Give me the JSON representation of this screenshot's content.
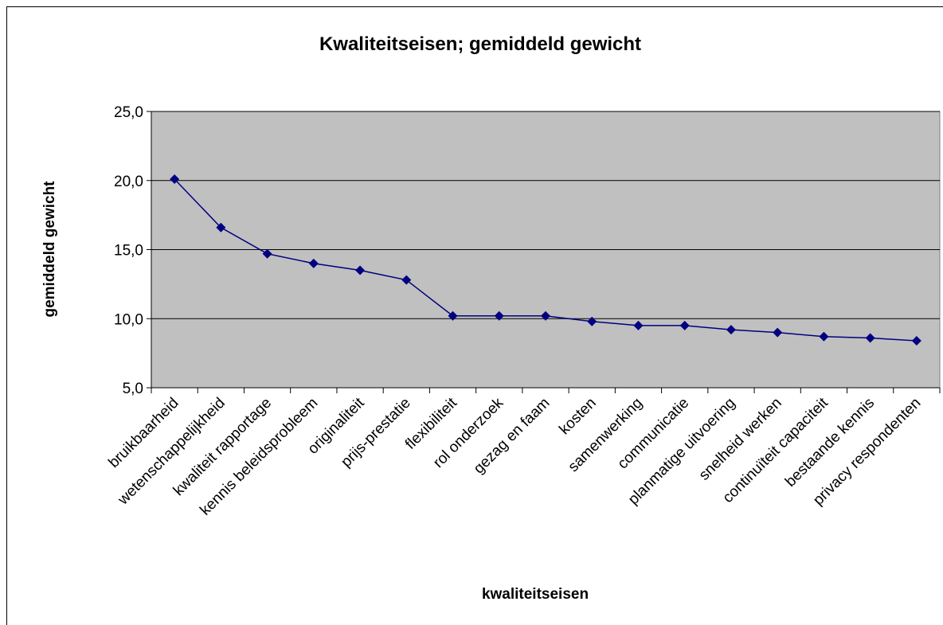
{
  "chart_data": {
    "type": "line",
    "title": "Kwaliteitseisen; gemiddeld gewicht",
    "x_label": "kwaliteitseisen",
    "y_label": "gemiddeld gewicht",
    "categories": [
      "bruikbaarheid",
      "wetenschappelijkheid",
      "kwaliteit rapportage",
      "kennis beleidsprobleem",
      "originaliteit",
      "prijs-prestatie",
      "flexibiliteit",
      "rol onderzoek",
      "gezag en faam",
      "kosten",
      "samenwerking",
      "communicatie",
      "planmatige uitvoering",
      "snelheid werken",
      "continuïteit capaciteit",
      "bestaande kennis",
      "privacy respondenten"
    ],
    "series": [
      {
        "name": "gemiddeld gewicht",
        "color": "#000080",
        "values": [
          20.1,
          16.6,
          14.7,
          14.0,
          13.5,
          12.8,
          10.2,
          10.2,
          10.2,
          9.8,
          9.5,
          9.5,
          9.2,
          9.0,
          8.7,
          8.6,
          8.4
        ]
      }
    ],
    "ylim": [
      5,
      25
    ],
    "yticks": [
      {
        "value": 5,
        "label": "5,0"
      },
      {
        "value": 10,
        "label": "10,0"
      },
      {
        "value": 15,
        "label": "15,0"
      },
      {
        "value": 20,
        "label": "20,0"
      },
      {
        "value": 25,
        "label": "25,0"
      }
    ],
    "grid": true,
    "plot_background": "#c0c0c0"
  }
}
